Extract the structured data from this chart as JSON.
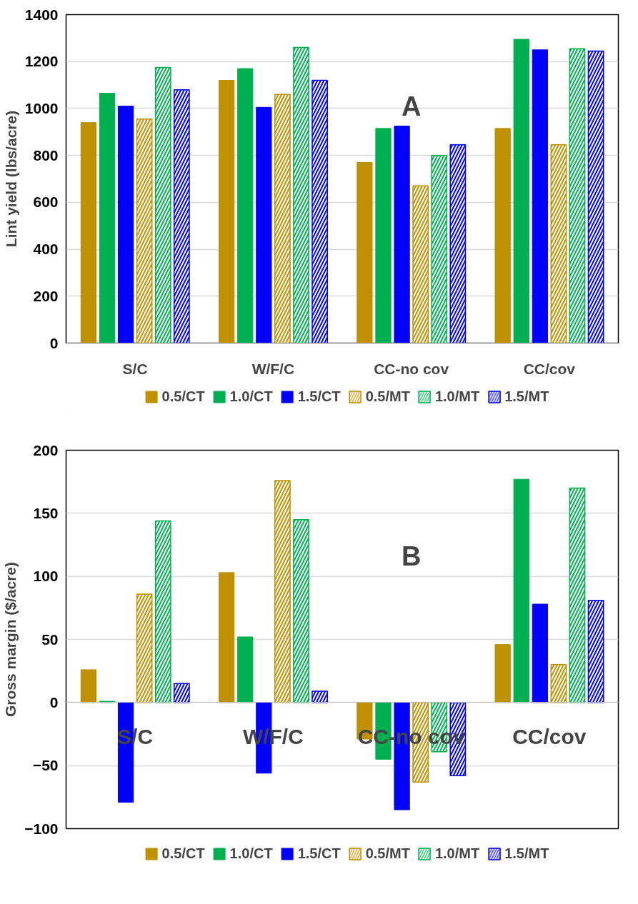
{
  "chart_data": [
    {
      "type": "bar",
      "ylabel": "Lint yield (lbs/acre)",
      "annotations": [
        "A"
      ],
      "categories": [
        "S/C",
        "W/F/C",
        "CC-no cov",
        "CC/cov"
      ],
      "ylim": [
        0,
        1400
      ],
      "yticks": [
        0,
        200,
        400,
        600,
        800,
        1000,
        1200,
        1400
      ],
      "grid": "y",
      "legend": "bottom",
      "series": [
        {
          "name": "0.5/CT",
          "color": "#bf9000",
          "values": [
            940,
            1120,
            770,
            915
          ]
        },
        {
          "name": "1.0/CT",
          "color": "#00b050",
          "values": [
            1065,
            1170,
            915,
            1295
          ]
        },
        {
          "name": "1.5/CT",
          "color": "#0000ff",
          "values": [
            1010,
            1005,
            925,
            1250
          ]
        },
        {
          "name": "0.5/MT",
          "color": "#bf9000",
          "values": [
            955,
            1060,
            670,
            845
          ]
        },
        {
          "name": "1.0/MT",
          "color": "#00b050",
          "values": [
            1175,
            1260,
            800,
            1255
          ]
        },
        {
          "name": "1.5/MT",
          "color": "#0000ff",
          "values": [
            1080,
            1120,
            845,
            1245
          ]
        }
      ]
    },
    {
      "type": "bar",
      "ylabel": "Gross margin ($/acre)",
      "annotations": [
        "B"
      ],
      "categories": [
        "S/C",
        "W/F/C",
        "CC-no cov",
        "CC/cov"
      ],
      "ylim": [
        -100,
        200
      ],
      "yticks": [
        -100,
        -50,
        0,
        50,
        100,
        150,
        200
      ],
      "grid": "y",
      "legend": "bottom",
      "series": [
        {
          "name": "0.5/CT",
          "color": "#bf9000",
          "values": [
            26,
            103,
            -29,
            46
          ]
        },
        {
          "name": "1.0/CT",
          "color": "#00b050",
          "values": [
            1,
            52,
            -45,
            177
          ]
        },
        {
          "name": "1.5/CT",
          "color": "#0000ff",
          "values": [
            -79,
            -56,
            -85,
            78
          ]
        },
        {
          "name": "0.5/MT",
          "color": "#bf9000",
          "values": [
            86,
            176,
            -63,
            30
          ]
        },
        {
          "name": "1.0/MT",
          "color": "#00b050",
          "values": [
            144,
            145,
            -39,
            170
          ]
        },
        {
          "name": "1.5/MT",
          "color": "#0000ff",
          "values": [
            15,
            9,
            -58,
            81
          ]
        }
      ]
    }
  ]
}
